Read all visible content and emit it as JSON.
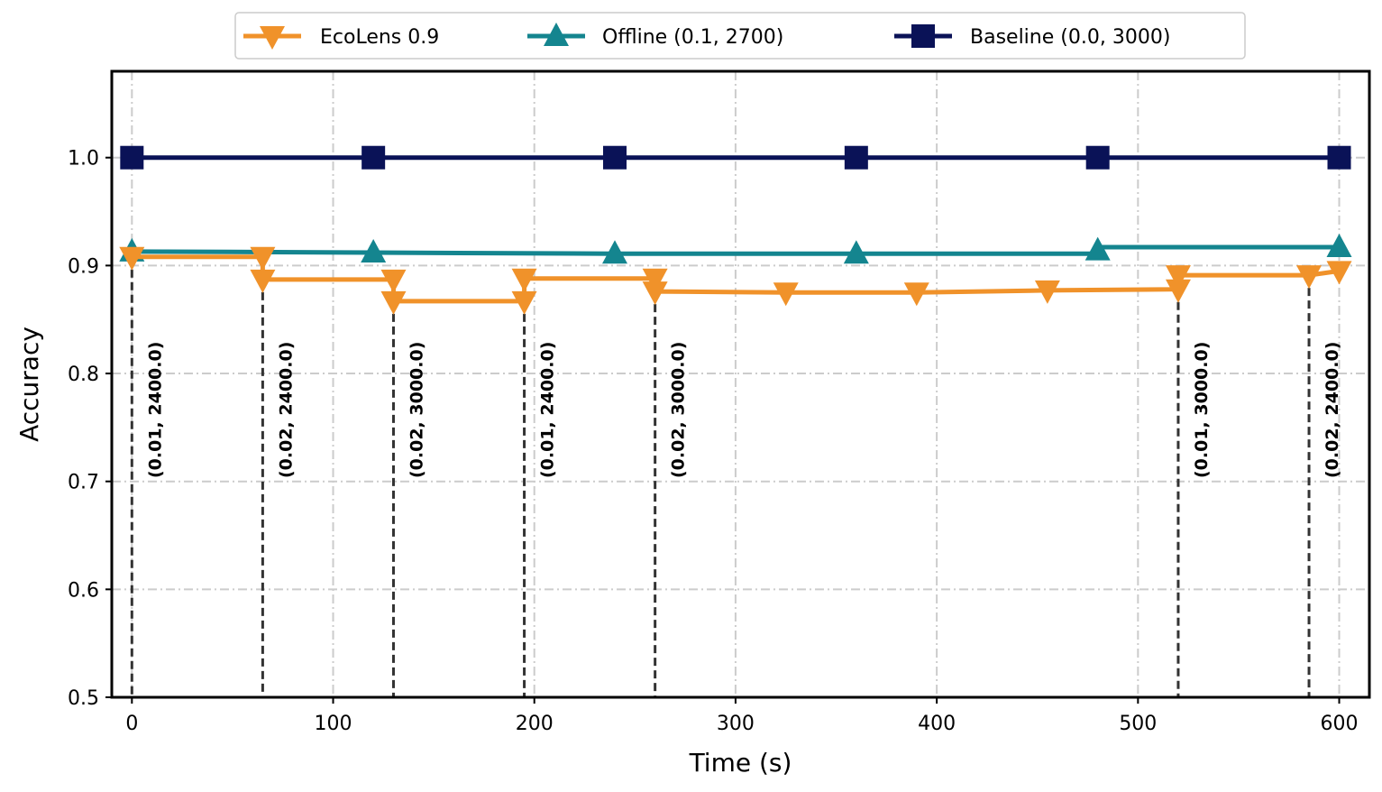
{
  "chart_data": {
    "type": "line",
    "title": "",
    "xlabel": "Time (s)",
    "ylabel": "Accuracy",
    "xlim": [
      -10,
      615
    ],
    "ylim": [
      0.5,
      1.08
    ],
    "xticks": [
      0,
      100,
      200,
      300,
      400,
      500,
      600
    ],
    "yticks": [
      0.5,
      0.6,
      0.7,
      0.8,
      0.9,
      1.0
    ],
    "xtick_labels": [
      "0",
      "100",
      "200",
      "300",
      "400",
      "500",
      "600"
    ],
    "ytick_labels": [
      "0.5",
      "0.6",
      "0.7",
      "0.8",
      "0.9",
      "1.0"
    ],
    "grid": true,
    "legend_position": "top-center",
    "series": [
      {
        "name": "EcoLens 0.9",
        "color": "#f0922a",
        "marker": "triangle-down",
        "step": true,
        "x": [
          0,
          65,
          65,
          130,
          130,
          195,
          195,
          260,
          260,
          325,
          390,
          455,
          520,
          520,
          585,
          600
        ],
        "y": [
          0.908,
          0.908,
          0.887,
          0.887,
          0.867,
          0.867,
          0.888,
          0.888,
          0.876,
          0.875,
          0.875,
          0.877,
          0.878,
          0.891,
          0.891,
          0.895
        ],
        "marker_x": [
          0,
          65,
          65,
          130,
          130,
          195,
          195,
          260,
          260,
          325,
          390,
          455,
          520,
          520,
          585,
          600
        ],
        "marker_y": [
          0.908,
          0.908,
          0.887,
          0.887,
          0.867,
          0.867,
          0.888,
          0.888,
          0.876,
          0.875,
          0.875,
          0.877,
          0.878,
          0.891,
          0.891,
          0.895
        ]
      },
      {
        "name": "Offline (0.1, 2700)",
        "color": "#14858f",
        "marker": "triangle-up",
        "step": true,
        "x": [
          0,
          120,
          240,
          360,
          480,
          480,
          600
        ],
        "y": [
          0.913,
          0.912,
          0.911,
          0.911,
          0.911,
          0.917,
          0.917
        ],
        "marker_x": [
          0,
          120,
          240,
          360,
          480,
          600
        ],
        "marker_y": [
          0.913,
          0.912,
          0.911,
          0.911,
          0.914,
          0.917
        ]
      },
      {
        "name": "Baseline (0.0, 3000)",
        "color": "#0a1257",
        "marker": "square",
        "step": false,
        "x": [
          0,
          120,
          240,
          360,
          480,
          600
        ],
        "y": [
          1.0,
          1.0,
          1.0,
          1.0,
          1.0,
          1.0
        ],
        "marker_x": [
          0,
          120,
          240,
          360,
          480,
          600
        ],
        "marker_y": [
          1.0,
          1.0,
          1.0,
          1.0,
          1.0,
          1.0
        ]
      }
    ],
    "annotations": [
      {
        "x": 0,
        "y_top": 0.908,
        "label": "(0.01, 2400.0)"
      },
      {
        "x": 65,
        "y_top": 0.887,
        "label": "(0.02, 2400.0)"
      },
      {
        "x": 130,
        "y_top": 0.867,
        "label": "(0.02, 3000.0)"
      },
      {
        "x": 195,
        "y_top": 0.867,
        "label": "(0.01, 2400.0)"
      },
      {
        "x": 260,
        "y_top": 0.876,
        "label": "(0.02, 3000.0)"
      },
      {
        "x": 520,
        "y_top": 0.878,
        "label": "(0.01, 3000.0)"
      },
      {
        "x": 585,
        "y_top": 0.891,
        "label": "(0.02, 2400.0)"
      }
    ],
    "annotation_color": "#333333",
    "grid_color": "#cccccc"
  }
}
